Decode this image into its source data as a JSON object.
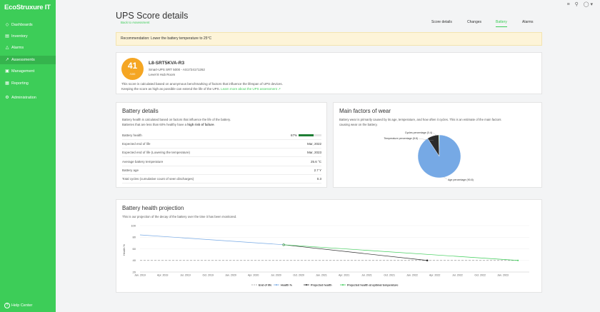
{
  "sidebar": {
    "logo": "EcoStruxure IT",
    "items": [
      {
        "label": "Dashboards",
        "icon": "dashboard-icon",
        "glyph": "◇"
      },
      {
        "label": "Inventory",
        "icon": "inventory-icon",
        "glyph": "▤"
      },
      {
        "label": "Alarms",
        "icon": "alarm-icon",
        "glyph": "△"
      },
      {
        "label": "Assessments",
        "icon": "assessment-icon",
        "glyph": "↗"
      },
      {
        "label": "Management",
        "icon": "management-icon",
        "glyph": "▣"
      },
      {
        "label": "Reporting",
        "icon": "report-icon",
        "glyph": "▦"
      },
      {
        "label": "Administration",
        "icon": "gear-icon",
        "glyph": "⚙"
      }
    ],
    "help": "Help Center"
  },
  "topbar": {
    "icons": [
      "notification-icon",
      "search-icon",
      "user-icon"
    ]
  },
  "page": {
    "title": "UPS Score details",
    "back_link": "Back to Assessment",
    "tabs": [
      "Score details",
      "Changes",
      "Battery",
      "Alarms"
    ],
    "active_tab": "Battery"
  },
  "recommendation": "Recommendation: Lower the battery temperature to 25°C",
  "score_card": {
    "score": "41",
    "max": "/100",
    "color": "#f5a623",
    "device_name": "L8-SRT5KVA-R3",
    "model": "Smart-UPS SRT 5000 - AS1724171262",
    "location": "Level 8 Hub Room",
    "desc1": "This score is calculated based on anonymous benchmarking of factors that influence the lifespan of UPS devices.",
    "desc2": "Keeping the score as high as possible can extend the life of the UPS.",
    "link": "Learn more about the UPS assessment"
  },
  "battery_details": {
    "title": "Battery details",
    "desc1": "Battery health is calculated based on factors that influence the life of the battery.",
    "desc2_prefix": "Batteries that are less than 60% healthy have a",
    "desc2_bold": "high risk of failure",
    "rows": [
      {
        "label": "Battery health",
        "value": "67%",
        "bar": 0.67
      },
      {
        "label": "Expected end of life",
        "value": "Mar, 2022"
      },
      {
        "label": "Expected end of life (Lowering the temperature)",
        "value": "Mar, 2023"
      },
      {
        "label": "Average battery temperature",
        "value": "25.6 °C"
      },
      {
        "label": "Battery age",
        "value": "2.7 Y"
      },
      {
        "label": "Total cycles (cumulative count of seen discharges)",
        "value": "0.3"
      }
    ]
  },
  "wear": {
    "title": "Main factors of wear",
    "desc1": "Battery wear is primarily caused by its age, temperature, and how often it cycles. This is an estimate of the main factors",
    "desc2": "causing wear on the battery."
  },
  "projection": {
    "title": "Battery health projection",
    "desc": "This is our projection of the decay of the battery over the time it has been monitored."
  },
  "chart_data": [
    {
      "type": "pie",
      "series": [
        {
          "name": "Age percentage (90.8)",
          "value": 90.8,
          "color": "#76a9e5"
        },
        {
          "name": "Temperature percentage (8.8)",
          "value": 8.8,
          "color": "#2b2b2b"
        },
        {
          "name": "Cycles percentage (0.4)",
          "value": 0.4,
          "color": "#3dcd58"
        }
      ]
    },
    {
      "type": "line",
      "ylabel": "Health %",
      "ylim": [
        20,
        100
      ],
      "yticks": [
        20,
        40,
        60,
        80,
        100
      ],
      "xticks": [
        "Jan. 2019",
        "Apr. 2019",
        "Jul. 2019",
        "Oct. 2019",
        "Jan. 2020",
        "Apr. 2020",
        "Jul. 2020",
        "Oct. 2020",
        "Jan. 2021",
        "Apr. 2021",
        "Jul. 2021",
        "Oct. 2021",
        "Jan. 2022",
        "Apr. 2022",
        "Jul. 2022",
        "Oct. 2022",
        "Jan. 2023"
      ],
      "series": [
        {
          "name": "End of life",
          "color": "#999999",
          "dashed": true,
          "points": [
            [
              "Jan. 2019",
              40
            ],
            [
              "Mar. 2023",
              40
            ]
          ]
        },
        {
          "name": "Health %",
          "color": "#76a9e5",
          "points": [
            [
              "Jan. 2019",
              84
            ],
            [
              "Aug. 2020",
              67
            ]
          ]
        },
        {
          "name": "Projected health",
          "color": "#2b2b2b",
          "points": [
            [
              "Aug. 2020",
              67
            ],
            [
              "Mar. 2022",
              40
            ]
          ]
        },
        {
          "name": "Projected health at optimal temperature",
          "color": "#3dcd58",
          "points": [
            [
              "Aug. 2020",
              67
            ],
            [
              "Mar. 2023",
              40
            ]
          ]
        }
      ]
    }
  ]
}
